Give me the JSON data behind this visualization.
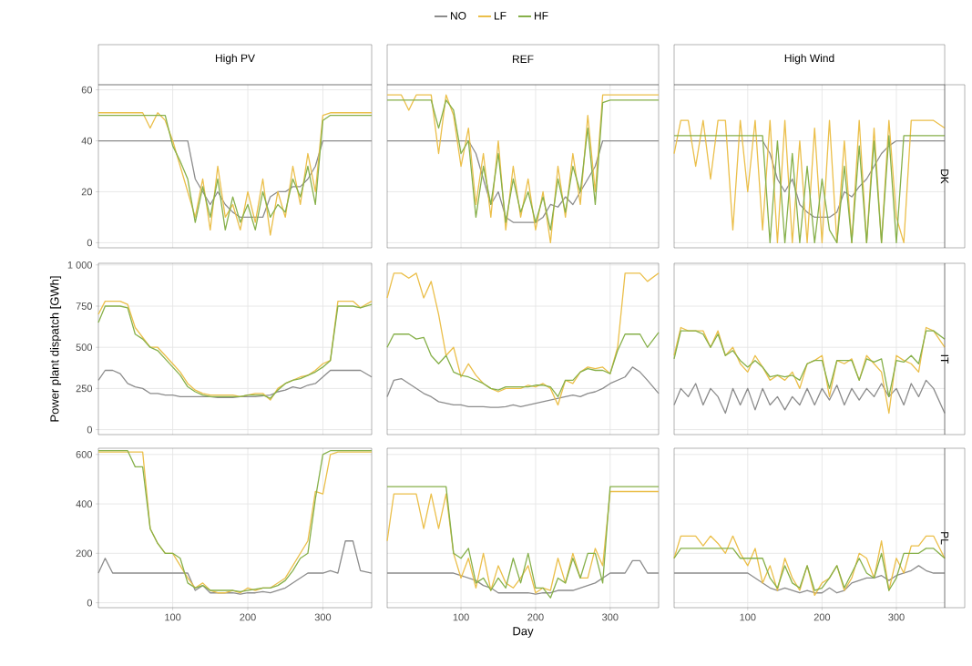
{
  "chart_data": [
    {
      "type": "line",
      "title": "High PV",
      "legend": "top",
      "tick_labels": "y",
      "grid": true,
      "xlim": [
        1,
        365
      ],
      "xticks": [
        100,
        200,
        300
      ],
      "ylim": [
        -2,
        62
      ],
      "yticks": [
        0,
        20,
        40,
        60
      ],
      "x": [
        1,
        10,
        20,
        30,
        40,
        50,
        60,
        70,
        80,
        90,
        100,
        110,
        120,
        130,
        140,
        150,
        160,
        170,
        180,
        190,
        200,
        210,
        220,
        230,
        240,
        250,
        260,
        270,
        280,
        290,
        300,
        310,
        320,
        330,
        340,
        350,
        365
      ],
      "series": [
        {
          "name": "NO",
          "color": "#8c8c8c",
          "values": [
            40,
            40,
            40,
            40,
            40,
            40,
            40,
            40,
            40,
            40,
            40,
            40,
            40,
            25,
            20,
            15,
            20,
            15,
            12,
            10,
            10,
            10,
            10,
            18,
            20,
            20,
            22,
            22,
            25,
            30,
            40,
            40,
            40,
            40,
            40,
            40,
            40
          ]
        },
        {
          "name": "LF",
          "color": "#ebbf4a",
          "values": [
            51,
            51,
            51,
            51,
            51,
            51,
            51,
            45,
            51,
            48,
            40,
            30,
            20,
            10,
            25,
            5,
            30,
            10,
            15,
            5,
            20,
            8,
            25,
            3,
            20,
            10,
            30,
            15,
            35,
            20,
            50,
            51,
            51,
            51,
            51,
            51,
            51
          ]
        },
        {
          "name": "HF",
          "color": "#86b04a",
          "values": [
            50,
            50,
            50,
            50,
            50,
            50,
            50,
            50,
            50,
            50,
            38,
            32,
            25,
            8,
            22,
            10,
            25,
            5,
            18,
            8,
            15,
            5,
            20,
            10,
            15,
            12,
            25,
            18,
            30,
            15,
            48,
            50,
            50,
            50,
            50,
            50,
            50
          ]
        }
      ]
    },
    {
      "type": "line",
      "title": "REF",
      "tick_labels": false,
      "grid": true,
      "xlim": [
        1,
        365
      ],
      "xticks": [
        100,
        200,
        300
      ],
      "ylim": [
        -2,
        62
      ],
      "yticks": [
        0,
        20,
        40,
        60
      ],
      "x": [
        1,
        10,
        20,
        30,
        40,
        50,
        60,
        70,
        80,
        90,
        100,
        110,
        120,
        130,
        140,
        150,
        160,
        170,
        180,
        190,
        200,
        210,
        220,
        230,
        240,
        250,
        260,
        270,
        280,
        290,
        300,
        310,
        320,
        330,
        340,
        350,
        365
      ],
      "series": [
        {
          "color": "#8c8c8c",
          "values": [
            40,
            40,
            40,
            40,
            40,
            40,
            40,
            40,
            40,
            40,
            40,
            40,
            35,
            25,
            15,
            20,
            10,
            8,
            8,
            8,
            8,
            10,
            15,
            14,
            18,
            15,
            20,
            25,
            30,
            40,
            40,
            40,
            40,
            40,
            40,
            40,
            40
          ]
        },
        {
          "color": "#ebbf4a",
          "values": [
            58,
            58,
            58,
            52,
            58,
            58,
            58,
            35,
            58,
            50,
            30,
            45,
            15,
            35,
            10,
            40,
            5,
            30,
            10,
            25,
            5,
            20,
            0,
            30,
            10,
            35,
            15,
            50,
            20,
            58,
            58,
            58,
            58,
            58,
            58,
            58,
            58
          ]
        },
        {
          "color": "#86b04a",
          "values": [
            56,
            56,
            56,
            56,
            56,
            56,
            56,
            45,
            56,
            52,
            35,
            40,
            10,
            30,
            15,
            35,
            8,
            25,
            12,
            20,
            8,
            18,
            5,
            25,
            12,
            30,
            20,
            45,
            15,
            55,
            56,
            56,
            56,
            56,
            56,
            56,
            56
          ]
        }
      ]
    },
    {
      "type": "line",
      "title": "High Wind",
      "y2label": "DK",
      "tick_labels": false,
      "grid": true,
      "xlim": [
        1,
        365
      ],
      "xticks": [
        100,
        200,
        300
      ],
      "ylim": [
        -2,
        62
      ],
      "yticks": [
        0,
        20,
        40,
        60
      ],
      "x": [
        1,
        10,
        20,
        30,
        40,
        50,
        60,
        70,
        80,
        90,
        100,
        110,
        120,
        130,
        140,
        150,
        160,
        170,
        180,
        190,
        200,
        210,
        220,
        230,
        240,
        250,
        260,
        270,
        280,
        290,
        300,
        310,
        320,
        330,
        340,
        350,
        365
      ],
      "series": [
        {
          "color": "#8c8c8c",
          "values": [
            40,
            40,
            40,
            40,
            40,
            40,
            40,
            40,
            40,
            40,
            40,
            40,
            40,
            35,
            25,
            20,
            25,
            15,
            12,
            10,
            10,
            10,
            12,
            20,
            18,
            22,
            25,
            30,
            35,
            38,
            40,
            40,
            40,
            40,
            40,
            40,
            40
          ]
        },
        {
          "color": "#ebbf4a",
          "values": [
            35,
            48,
            48,
            30,
            48,
            25,
            48,
            48,
            5,
            48,
            20,
            48,
            5,
            48,
            0,
            48,
            0,
            40,
            0,
            45,
            0,
            48,
            0,
            40,
            0,
            48,
            0,
            45,
            0,
            48,
            10,
            0,
            48,
            48,
            48,
            48,
            45
          ]
        },
        {
          "color": "#86b04a",
          "values": [
            42,
            42,
            42,
            42,
            42,
            42,
            42,
            42,
            42,
            42,
            42,
            42,
            42,
            0,
            40,
            0,
            35,
            0,
            30,
            0,
            25,
            5,
            0,
            30,
            0,
            38,
            0,
            40,
            0,
            42,
            0,
            42,
            42,
            42,
            42,
            42,
            42
          ]
        }
      ]
    },
    {
      "type": "line",
      "ylabel": "Power plant dispatch [GWh]",
      "tick_labels": "y",
      "grid": true,
      "xlim": [
        1,
        365
      ],
      "xticks": [
        100,
        200,
        300
      ],
      "ylim": [
        -30,
        1010
      ],
      "yticks": [
        0,
        250,
        500,
        750,
        {
          "value": 1000,
          "label": "1 000"
        }
      ],
      "x": [
        1,
        10,
        20,
        30,
        40,
        50,
        60,
        70,
        80,
        90,
        100,
        110,
        120,
        130,
        140,
        150,
        160,
        170,
        180,
        190,
        200,
        210,
        220,
        230,
        240,
        250,
        260,
        270,
        280,
        290,
        300,
        310,
        320,
        330,
        340,
        350,
        365
      ],
      "series": [
        {
          "color": "#8c8c8c",
          "values": [
            300,
            360,
            360,
            340,
            280,
            260,
            250,
            220,
            220,
            210,
            210,
            200,
            200,
            200,
            200,
            200,
            195,
            195,
            195,
            200,
            200,
            200,
            205,
            210,
            230,
            240,
            260,
            250,
            270,
            280,
            320,
            360,
            360,
            360,
            360,
            360,
            320
          ]
        },
        {
          "color": "#ebbf4a",
          "values": [
            700,
            780,
            780,
            780,
            760,
            620,
            560,
            500,
            500,
            450,
            400,
            350,
            280,
            240,
            220,
            210,
            210,
            210,
            210,
            200,
            210,
            220,
            220,
            180,
            250,
            280,
            300,
            320,
            330,
            360,
            400,
            420,
            780,
            780,
            780,
            740,
            780
          ]
        },
        {
          "color": "#86b04a",
          "values": [
            650,
            750,
            750,
            750,
            740,
            580,
            550,
            500,
            480,
            430,
            380,
            330,
            260,
            230,
            210,
            200,
            200,
            200,
            200,
            200,
            210,
            210,
            210,
            190,
            240,
            280,
            300,
            310,
            330,
            350,
            380,
            420,
            750,
            750,
            750,
            740,
            760
          ]
        }
      ]
    },
    {
      "type": "line",
      "tick_labels": false,
      "grid": true,
      "xlim": [
        1,
        365
      ],
      "xticks": [
        100,
        200,
        300
      ],
      "ylim": [
        -30,
        1010
      ],
      "yticks": [
        0,
        250,
        500,
        750,
        1000
      ],
      "x": [
        1,
        10,
        20,
        30,
        40,
        50,
        60,
        70,
        80,
        90,
        100,
        110,
        120,
        130,
        140,
        150,
        160,
        170,
        180,
        190,
        200,
        210,
        220,
        230,
        240,
        250,
        260,
        270,
        280,
        290,
        300,
        310,
        320,
        330,
        340,
        350,
        365
      ],
      "series": [
        {
          "color": "#8c8c8c",
          "values": [
            200,
            300,
            310,
            280,
            250,
            220,
            200,
            170,
            160,
            150,
            150,
            140,
            140,
            140,
            135,
            135,
            140,
            150,
            140,
            150,
            160,
            170,
            180,
            190,
            200,
            210,
            200,
            220,
            230,
            250,
            280,
            300,
            320,
            380,
            350,
            300,
            220
          ]
        },
        {
          "color": "#ebbf4a",
          "values": [
            800,
            950,
            950,
            920,
            950,
            800,
            900,
            700,
            450,
            500,
            320,
            400,
            330,
            280,
            250,
            230,
            250,
            250,
            250,
            270,
            260,
            280,
            250,
            150,
            300,
            280,
            350,
            380,
            370,
            380,
            340,
            500,
            950,
            950,
            950,
            900,
            950
          ]
        },
        {
          "color": "#86b04a",
          "values": [
            500,
            580,
            580,
            580,
            550,
            560,
            450,
            400,
            450,
            350,
            330,
            320,
            300,
            280,
            250,
            240,
            260,
            260,
            260,
            260,
            270,
            270,
            260,
            200,
            300,
            300,
            350,
            370,
            360,
            360,
            340,
            480,
            580,
            580,
            580,
            500,
            590
          ]
        }
      ]
    },
    {
      "type": "line",
      "y2label": "IT",
      "tick_labels": false,
      "grid": true,
      "xlim": [
        1,
        365
      ],
      "xticks": [
        100,
        200,
        300
      ],
      "ylim": [
        -30,
        1010
      ],
      "yticks": [
        0,
        250,
        500,
        750,
        1000
      ],
      "x": [
        1,
        10,
        20,
        30,
        40,
        50,
        60,
        70,
        80,
        90,
        100,
        110,
        120,
        130,
        140,
        150,
        160,
        170,
        180,
        190,
        200,
        210,
        220,
        230,
        240,
        250,
        260,
        270,
        280,
        290,
        300,
        310,
        320,
        330,
        340,
        350,
        365
      ],
      "series": [
        {
          "color": "#8c8c8c",
          "values": [
            150,
            250,
            200,
            280,
            150,
            250,
            200,
            100,
            250,
            150,
            250,
            120,
            250,
            150,
            200,
            120,
            200,
            150,
            250,
            150,
            250,
            180,
            270,
            150,
            250,
            180,
            250,
            200,
            280,
            200,
            250,
            150,
            280,
            200,
            300,
            250,
            100
          ]
        },
        {
          "color": "#ebbf4a",
          "values": [
            450,
            620,
            600,
            600,
            600,
            500,
            600,
            450,
            500,
            400,
            350,
            450,
            380,
            300,
            330,
            300,
            350,
            250,
            400,
            420,
            450,
            200,
            420,
            400,
            430,
            300,
            450,
            400,
            350,
            100,
            450,
            420,
            400,
            350,
            620,
            600,
            500
          ]
        },
        {
          "color": "#86b04a",
          "values": [
            430,
            600,
            600,
            600,
            580,
            500,
            580,
            450,
            480,
            420,
            380,
            420,
            380,
            320,
            330,
            320,
            330,
            300,
            400,
            420,
            420,
            250,
            420,
            420,
            420,
            300,
            430,
            410,
            430,
            200,
            420,
            410,
            450,
            400,
            600,
            600,
            550
          ]
        }
      ]
    },
    {
      "type": "line",
      "grid": true,
      "xlim": [
        1,
        365
      ],
      "xticks": [
        100,
        200,
        300
      ],
      "ylim": [
        -20,
        625
      ],
      "yticks": [
        0,
        200,
        400,
        600
      ],
      "x": [
        1,
        10,
        20,
        30,
        40,
        50,
        60,
        70,
        80,
        90,
        100,
        110,
        120,
        130,
        140,
        150,
        160,
        170,
        180,
        190,
        200,
        210,
        220,
        230,
        240,
        250,
        260,
        270,
        280,
        290,
        300,
        310,
        320,
        330,
        340,
        350,
        365
      ],
      "series": [
        {
          "color": "#8c8c8c",
          "values": [
            120,
            180,
            120,
            120,
            120,
            120,
            120,
            120,
            120,
            120,
            120,
            120,
            120,
            50,
            70,
            40,
            40,
            40,
            40,
            35,
            40,
            40,
            45,
            40,
            50,
            60,
            80,
            100,
            120,
            120,
            120,
            130,
            120,
            250,
            250,
            130,
            120
          ]
        },
        {
          "color": "#ebbf4a",
          "values": [
            610,
            610,
            610,
            610,
            610,
            610,
            610,
            300,
            240,
            200,
            200,
            150,
            100,
            60,
            80,
            50,
            40,
            40,
            50,
            40,
            60,
            50,
            60,
            60,
            80,
            100,
            150,
            200,
            250,
            450,
            440,
            600,
            610,
            610,
            610,
            610,
            610
          ]
        },
        {
          "color": "#86b04a",
          "values": [
            615,
            615,
            615,
            615,
            615,
            550,
            550,
            300,
            240,
            200,
            200,
            180,
            80,
            60,
            70,
            50,
            50,
            50,
            50,
            45,
            50,
            55,
            60,
            60,
            70,
            90,
            130,
            180,
            200,
            420,
            600,
            615,
            615,
            615,
            615,
            615,
            615
          ]
        }
      ]
    },
    {
      "type": "line",
      "xlabel": "Day",
      "tick_labels": "x",
      "grid": true,
      "xlim": [
        1,
        365
      ],
      "xticks": [
        100,
        200,
        300
      ],
      "ylim": [
        -20,
        625
      ],
      "yticks": [
        0,
        200,
        400,
        600
      ],
      "x": [
        1,
        10,
        20,
        30,
        40,
        50,
        60,
        70,
        80,
        90,
        100,
        110,
        120,
        130,
        140,
        150,
        160,
        170,
        180,
        190,
        200,
        210,
        220,
        230,
        240,
        250,
        260,
        270,
        280,
        290,
        300,
        310,
        320,
        330,
        340,
        350,
        365
      ],
      "series": [
        {
          "color": "#8c8c8c",
          "values": [
            120,
            120,
            120,
            120,
            120,
            120,
            120,
            120,
            120,
            120,
            110,
            100,
            90,
            70,
            60,
            40,
            40,
            40,
            40,
            40,
            35,
            40,
            40,
            50,
            50,
            50,
            60,
            70,
            80,
            100,
            120,
            120,
            120,
            170,
            170,
            120,
            120
          ]
        },
        {
          "color": "#ebbf4a",
          "values": [
            250,
            440,
            440,
            440,
            440,
            300,
            440,
            300,
            440,
            200,
            100,
            180,
            60,
            200,
            50,
            150,
            80,
            60,
            100,
            150,
            40,
            60,
            50,
            180,
            80,
            200,
            100,
            100,
            220,
            150,
            450,
            450,
            450,
            450,
            450,
            450,
            450
          ]
        },
        {
          "color": "#86b04a",
          "values": [
            470,
            470,
            470,
            470,
            470,
            470,
            470,
            470,
            470,
            200,
            180,
            220,
            80,
            100,
            50,
            100,
            60,
            180,
            80,
            200,
            60,
            60,
            20,
            100,
            80,
            180,
            100,
            200,
            200,
            80,
            470,
            470,
            470,
            470,
            470,
            470,
            470
          ]
        }
      ]
    },
    {
      "type": "line",
      "y2label": "PL",
      "tick_labels": "x",
      "grid": true,
      "xlim": [
        1,
        365
      ],
      "xticks": [
        100,
        200,
        300
      ],
      "ylim": [
        -20,
        625
      ],
      "yticks": [
        0,
        200,
        400,
        600
      ],
      "x": [
        1,
        10,
        20,
        30,
        40,
        50,
        60,
        70,
        80,
        90,
        100,
        110,
        120,
        130,
        140,
        150,
        160,
        170,
        180,
        190,
        200,
        210,
        220,
        230,
        240,
        250,
        260,
        270,
        280,
        290,
        300,
        310,
        320,
        330,
        340,
        350,
        365
      ],
      "series": [
        {
          "color": "#8c8c8c",
          "values": [
            120,
            120,
            120,
            120,
            120,
            120,
            120,
            120,
            120,
            120,
            120,
            100,
            80,
            60,
            50,
            60,
            50,
            40,
            50,
            40,
            40,
            60,
            40,
            50,
            80,
            90,
            100,
            100,
            110,
            90,
            110,
            120,
            130,
            150,
            130,
            120,
            120
          ]
        },
        {
          "color": "#ebbf4a",
          "values": [
            180,
            270,
            270,
            270,
            230,
            270,
            240,
            200,
            270,
            200,
            150,
            220,
            80,
            150,
            50,
            180,
            100,
            50,
            150,
            30,
            80,
            100,
            150,
            50,
            100,
            200,
            180,
            100,
            250,
            50,
            180,
            120,
            230,
            230,
            270,
            270,
            180
          ]
        },
        {
          "color": "#86b04a",
          "values": [
            180,
            220,
            220,
            220,
            220,
            220,
            220,
            220,
            220,
            180,
            180,
            180,
            180,
            100,
            60,
            150,
            80,
            60,
            150,
            50,
            60,
            100,
            150,
            60,
            120,
            180,
            120,
            100,
            200,
            50,
            100,
            200,
            200,
            200,
            220,
            220,
            180
          ]
        }
      ]
    }
  ]
}
